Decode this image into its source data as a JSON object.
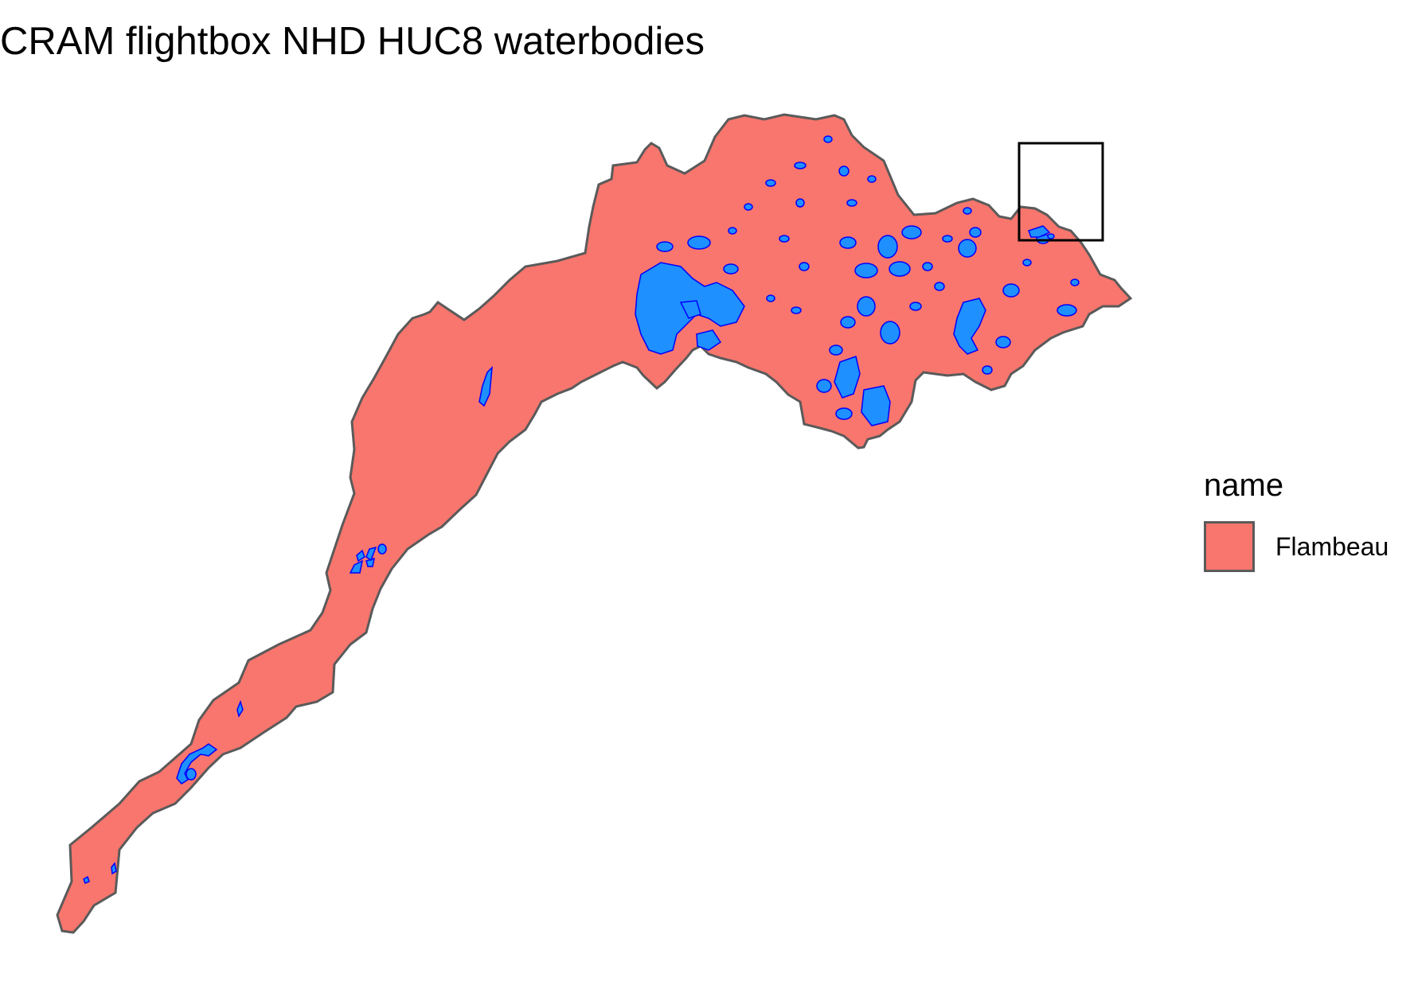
{
  "title": "CRAM flightbox NHD HUC8 waterbodies",
  "legend": {
    "title": "name",
    "items": [
      {
        "label": "Flambeau",
        "fill": "#F8766D"
      }
    ]
  },
  "colors": {
    "watershed_fill": "#F8766D",
    "watershed_outline": "#5a5a5a",
    "water_fill": "#1E90FF",
    "water_outline": "#0000FF",
    "flightbox_outline": "#000000"
  }
}
